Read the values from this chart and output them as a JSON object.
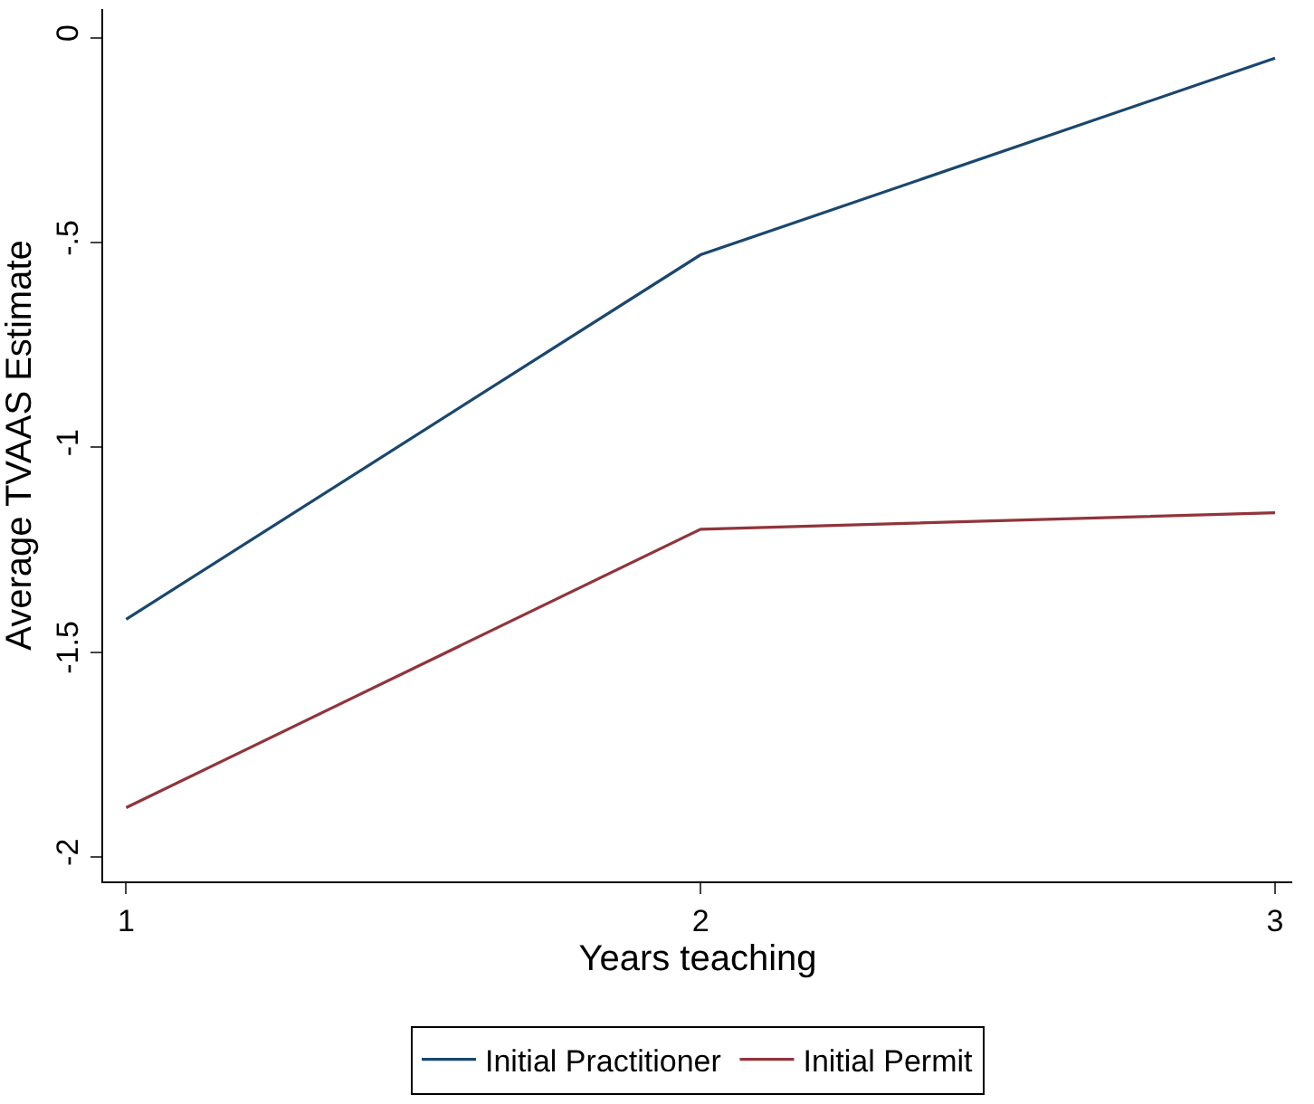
{
  "chart_data": {
    "type": "line",
    "xlabel": "Years teaching",
    "ylabel": "Average TVAAS Estimate",
    "x": [
      1,
      2,
      3
    ],
    "series": [
      {
        "name": "Initial Practitioner",
        "color": "#1a476f",
        "values": [
          -1.42,
          -0.53,
          -0.05
        ]
      },
      {
        "name": "Initial Permit",
        "color": "#90353b",
        "values": [
          -1.88,
          -1.2,
          -1.16
        ]
      }
    ],
    "xlim": [
      0.96,
      3.03
    ],
    "xticks": [
      1,
      2,
      3
    ],
    "ylim": [
      -2.06,
      0.07
    ],
    "yticks": [
      {
        "value": 0,
        "label": "0"
      },
      {
        "value": -0.5,
        "label": "-.5"
      },
      {
        "value": -1,
        "label": "-1"
      },
      {
        "value": -1.5,
        "label": "-1.5"
      },
      {
        "value": -2,
        "label": "-2"
      }
    ],
    "grid": false,
    "legend": "bottom",
    "marker": "none",
    "line_style": "solid"
  }
}
